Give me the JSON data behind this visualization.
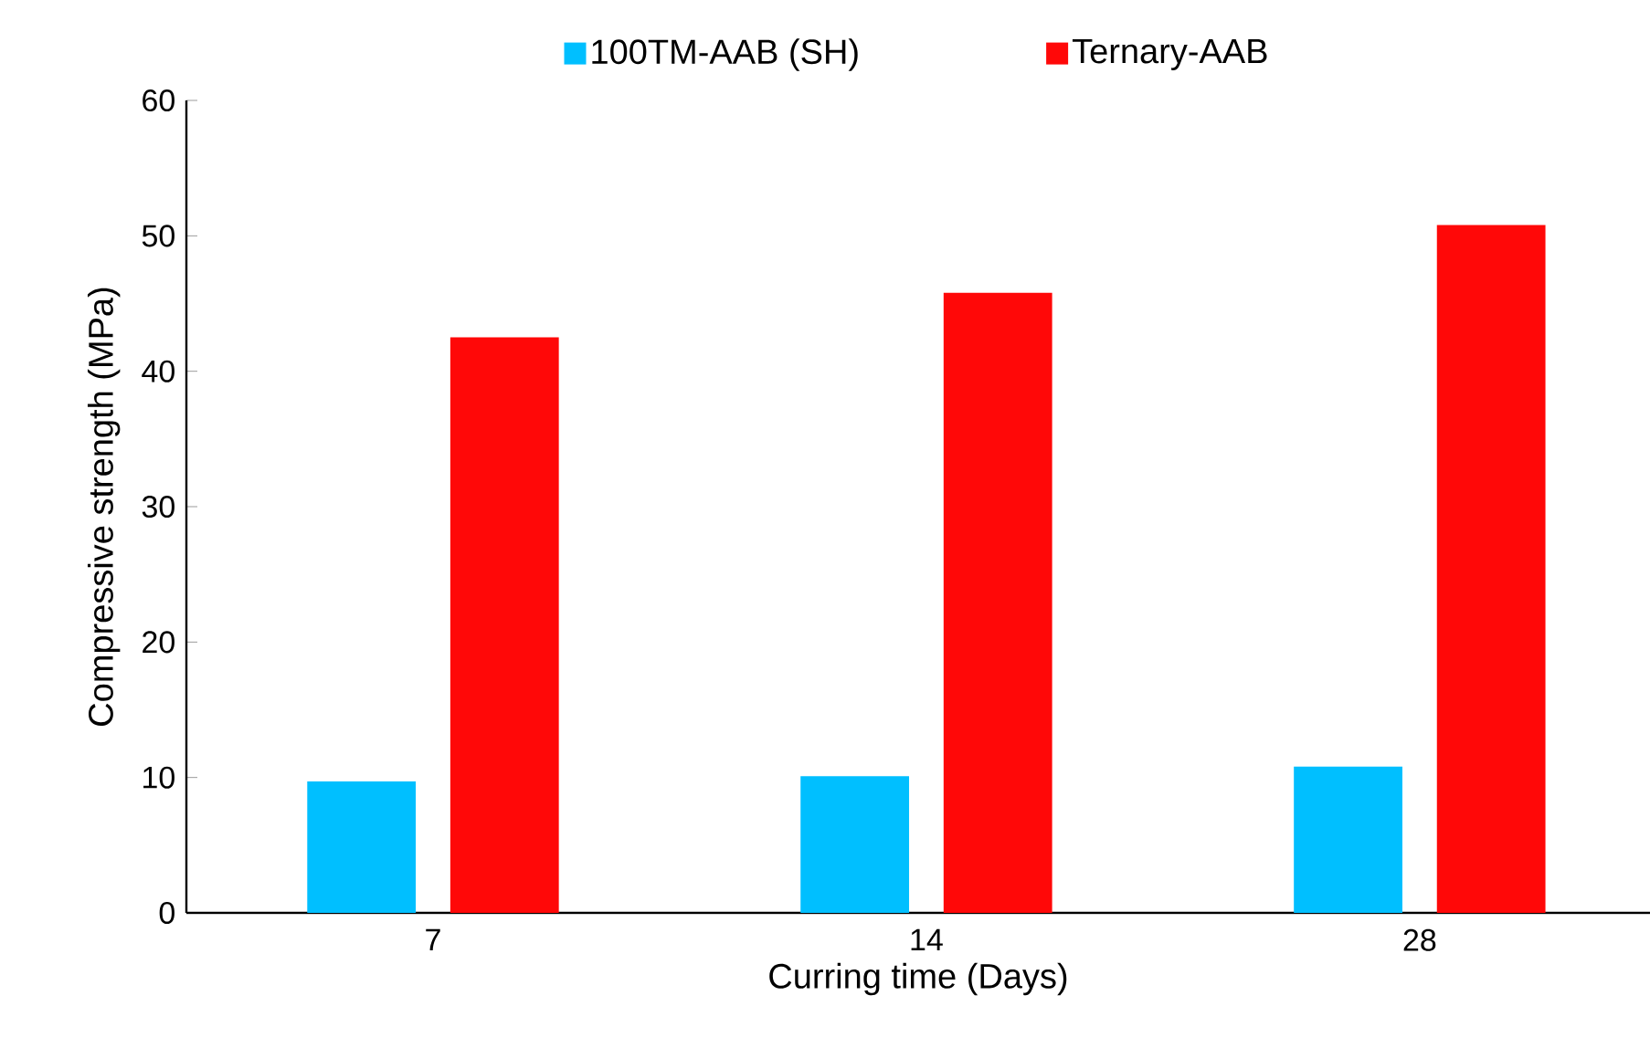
{
  "chart_data": {
    "type": "bar",
    "xlabel": "Curring time (Days)",
    "ylabel": "Compressive strength (MPa)",
    "categories": [
      "7",
      "14",
      "28"
    ],
    "series": [
      {
        "name": "100TM-AAB (SH)",
        "color": "#00bfff",
        "values": [
          9.7,
          10.1,
          10.8
        ]
      },
      {
        "name": "Ternary-AAB",
        "color": "#ff0808",
        "values": [
          42.5,
          45.8,
          50.8
        ]
      }
    ],
    "ylim": [
      0,
      60
    ],
    "yticks": [
      0,
      10,
      20,
      30,
      40,
      50,
      60
    ],
    "grid": false,
    "legend": "top"
  }
}
